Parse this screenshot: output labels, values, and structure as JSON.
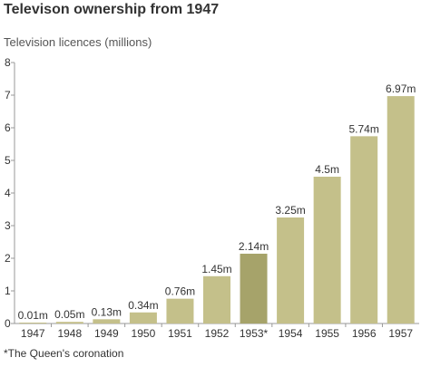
{
  "chart_data": {
    "type": "bar",
    "title": "Televison ownership from 1947",
    "ylabel": "Television licences (millions)",
    "xlabel": "",
    "categories": [
      "1947",
      "1948",
      "1949",
      "1950",
      "1951",
      "1952",
      "1953*",
      "1954",
      "1955",
      "1956",
      "1957"
    ],
    "values": [
      0.01,
      0.05,
      0.13,
      0.34,
      0.76,
      1.45,
      2.14,
      3.25,
      4.5,
      5.74,
      6.97
    ],
    "value_labels": [
      "0.01m",
      "0.05m",
      "0.13m",
      "0.34m",
      "0.76m",
      "1.45m",
      "2.14m",
      "3.25m",
      "4.5m",
      "5.74m",
      "6.97m"
    ],
    "highlight_index": 6,
    "ylim": [
      0,
      8
    ],
    "yticks": [
      0,
      1,
      2,
      3,
      4,
      5,
      6,
      7,
      8
    ],
    "grid": false,
    "colors": {
      "bar": "#c4c08a",
      "highlight": "#a6a36a",
      "axis": "#999999"
    }
  },
  "footnote": "*The Queen's coronation"
}
